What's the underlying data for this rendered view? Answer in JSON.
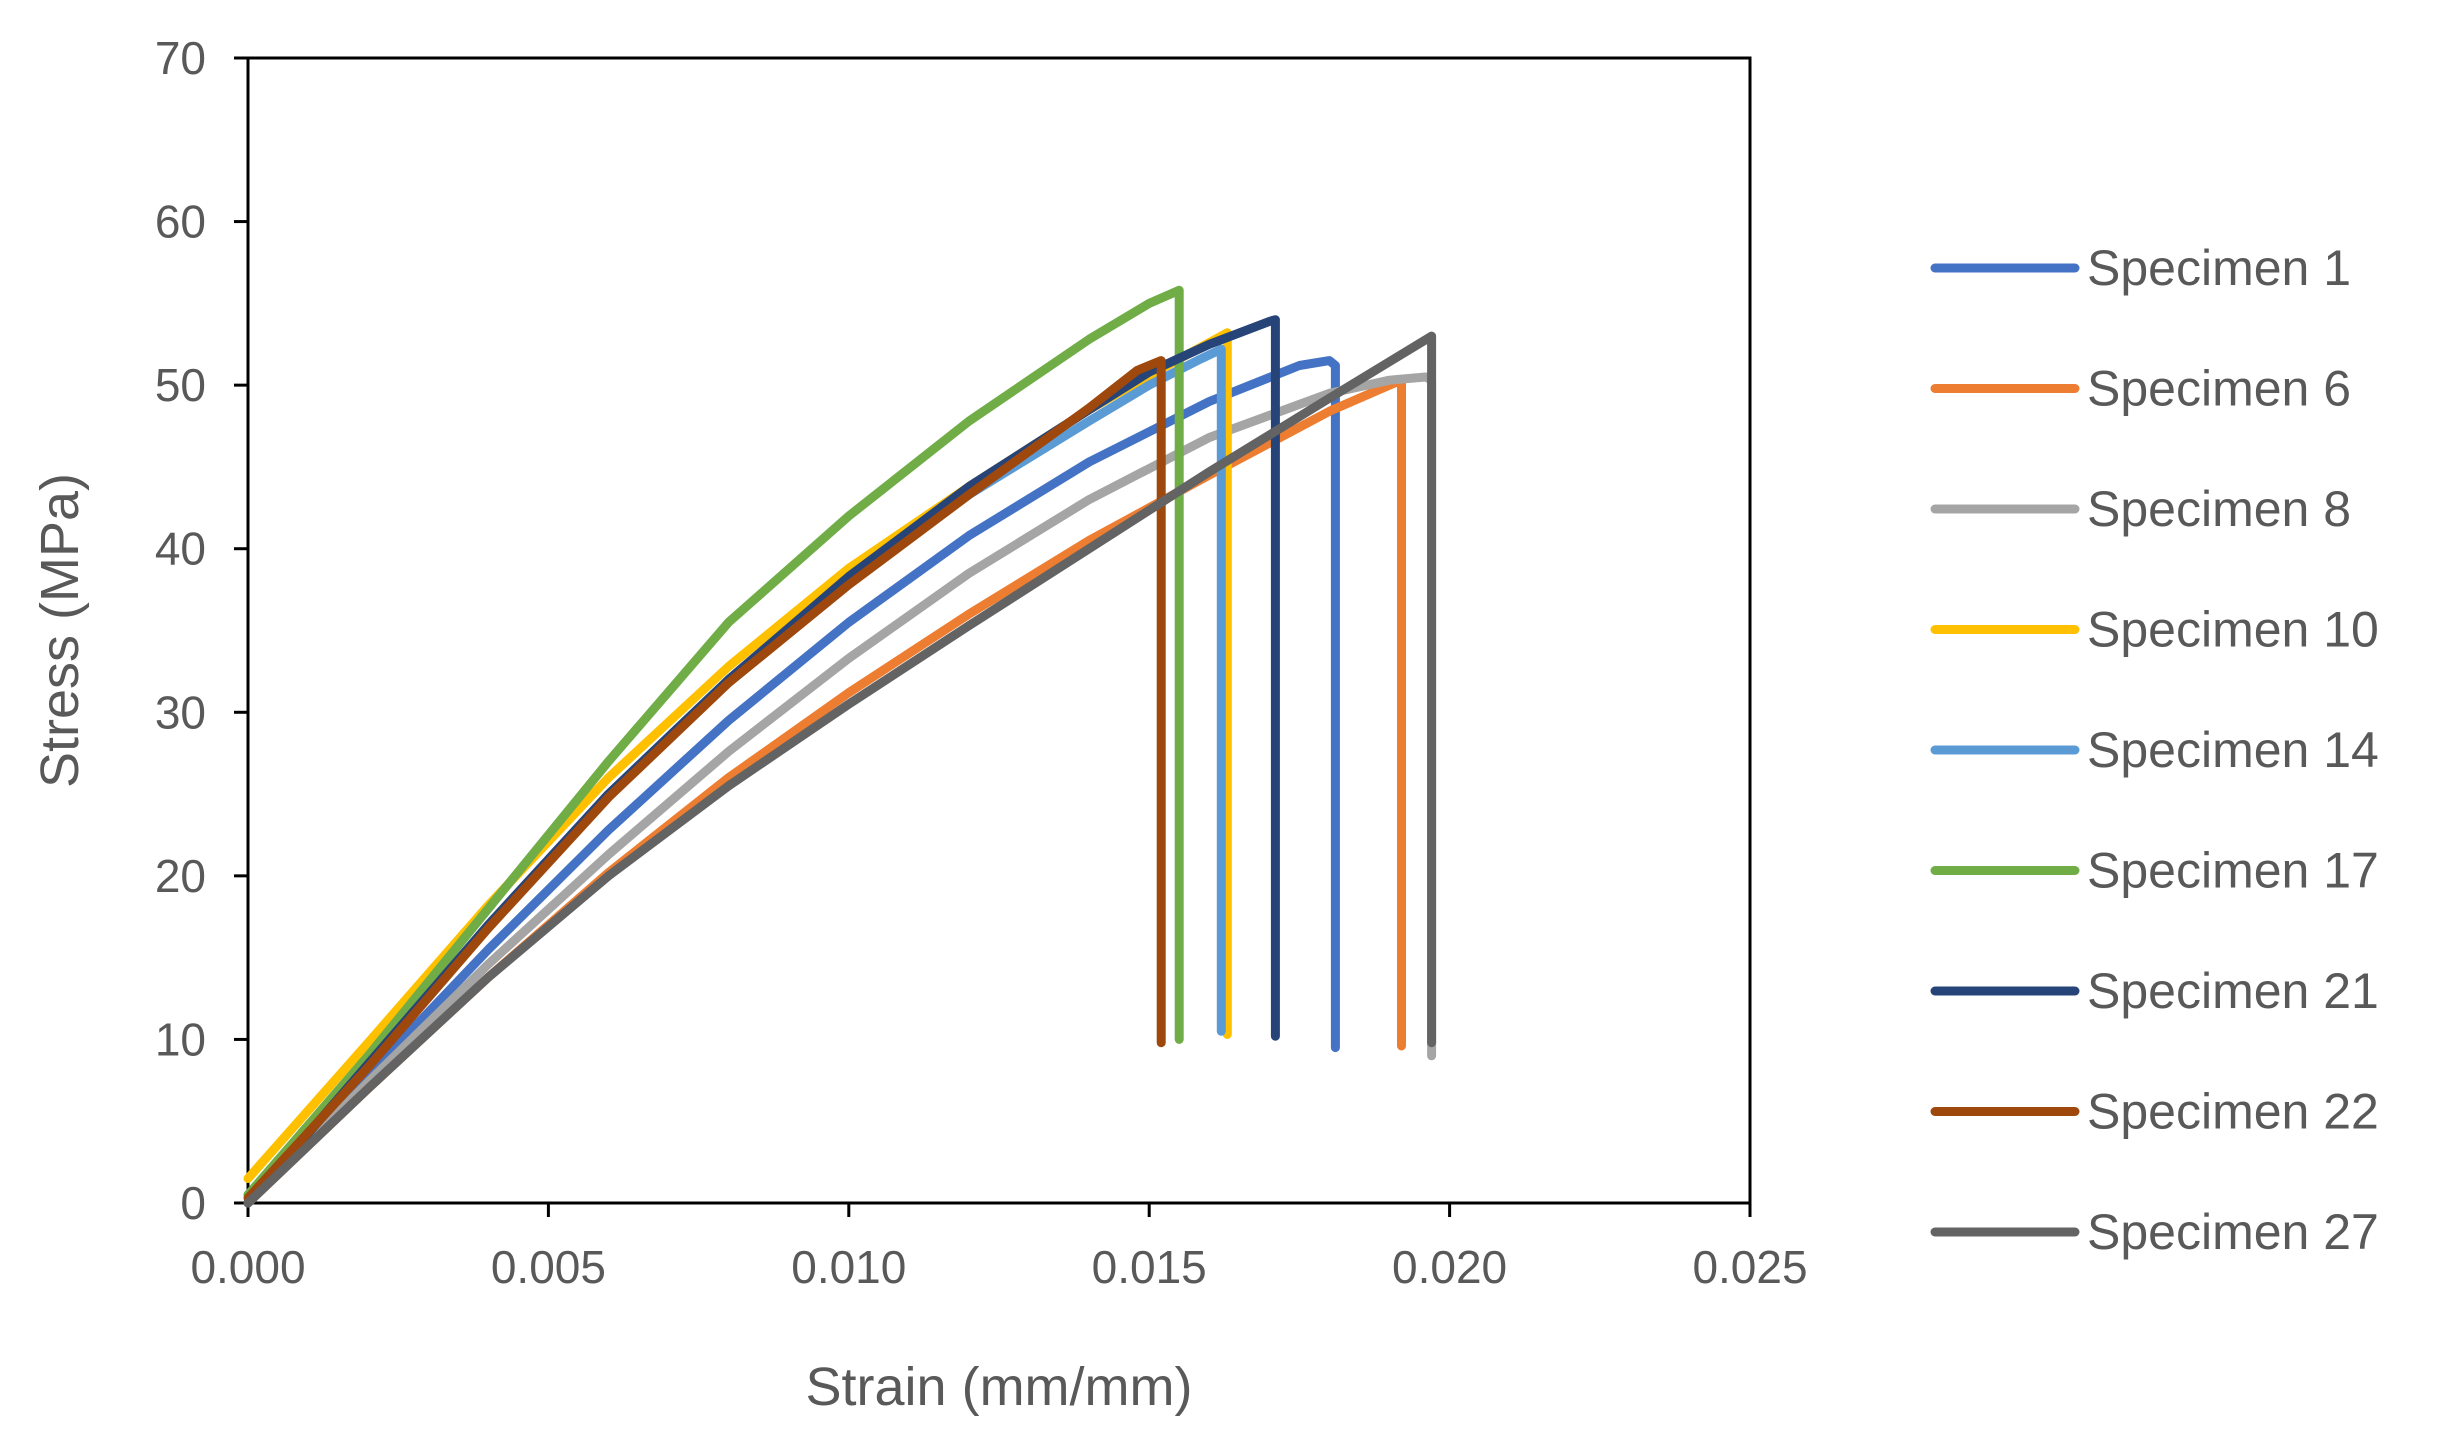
{
  "chart_data": {
    "type": "line",
    "title": "",
    "xlabel": "Strain (mm/mm)",
    "ylabel": "Stress (MPa)",
    "xlim": [
      0,
      0.025
    ],
    "ylim": [
      0,
      70
    ],
    "xticks": [
      0.0,
      0.005,
      0.01,
      0.015,
      0.02,
      0.025
    ],
    "xtick_labels": [
      "0.000",
      "0.005",
      "0.010",
      "0.015",
      "0.020",
      "0.025"
    ],
    "yticks": [
      0,
      10,
      20,
      30,
      40,
      50,
      60,
      70
    ],
    "ytick_labels": [
      "0",
      "10",
      "20",
      "30",
      "40",
      "50",
      "60",
      "70"
    ],
    "grid": false,
    "legend_position": "right",
    "series": [
      {
        "name": "Specimen 1",
        "color": "#4472C4",
        "x": [
          0.0,
          0.002,
          0.004,
          0.006,
          0.008,
          0.01,
          0.012,
          0.014,
          0.016,
          0.0175,
          0.018,
          0.0181,
          0.0181
        ],
        "y": [
          0,
          7.8,
          15.5,
          22.8,
          29.5,
          35.5,
          40.8,
          45.3,
          49.0,
          51.2,
          51.5,
          51.2,
          9.5
        ]
      },
      {
        "name": "Specimen 6",
        "color": "#ED7D31",
        "x": [
          0.0,
          0.002,
          0.004,
          0.006,
          0.008,
          0.01,
          0.012,
          0.014,
          0.016,
          0.018,
          0.019,
          0.0192,
          0.0192
        ],
        "y": [
          0,
          7.0,
          13.8,
          20.2,
          26.0,
          31.2,
          36.0,
          40.5,
          44.5,
          48.4,
          50.0,
          50.3,
          9.6
        ]
      },
      {
        "name": "Specimen 8",
        "color": "#A5A5A5",
        "x": [
          0.0,
          0.002,
          0.004,
          0.006,
          0.008,
          0.01,
          0.012,
          0.014,
          0.016,
          0.018,
          0.019,
          0.0196,
          0.0197,
          0.0197
        ],
        "y": [
          0,
          7.4,
          14.6,
          21.3,
          27.6,
          33.3,
          38.5,
          43.0,
          46.8,
          49.5,
          50.3,
          50.5,
          50.3,
          9.0
        ]
      },
      {
        "name": "Specimen 10",
        "color": "#FFC000",
        "x": [
          0.0,
          0.002,
          0.004,
          0.006,
          0.008,
          0.01,
          0.012,
          0.014,
          0.015,
          0.016,
          0.0163,
          0.0163
        ],
        "y": [
          1.5,
          9.8,
          18.2,
          26.0,
          32.8,
          38.8,
          43.8,
          48.5,
          50.6,
          52.6,
          53.2,
          10.3
        ]
      },
      {
        "name": "Specimen 14",
        "color": "#5B9BD5",
        "x": [
          0.0,
          0.002,
          0.004,
          0.006,
          0.008,
          0.01,
          0.012,
          0.014,
          0.015,
          0.0158,
          0.0162,
          0.0162
        ],
        "y": [
          0.5,
          8.5,
          17.0,
          25.0,
          32.0,
          38.0,
          43.3,
          47.8,
          50.0,
          51.5,
          52.2,
          10.5
        ]
      },
      {
        "name": "Specimen 17",
        "color": "#70AD47",
        "x": [
          0.0,
          0.002,
          0.004,
          0.006,
          0.008,
          0.01,
          0.012,
          0.014,
          0.015,
          0.0155,
          0.0155
        ],
        "y": [
          0.5,
          9.0,
          18.0,
          27.0,
          35.5,
          42.0,
          47.8,
          52.8,
          55.0,
          55.8,
          10.0
        ]
      },
      {
        "name": "Specimen 21",
        "color": "#264478",
        "x": [
          0.0,
          0.002,
          0.004,
          0.006,
          0.008,
          0.01,
          0.012,
          0.014,
          0.015,
          0.016,
          0.017,
          0.0171,
          0.0171
        ],
        "y": [
          0,
          8.5,
          17.0,
          25.0,
          32.0,
          38.3,
          43.8,
          48.5,
          50.8,
          52.5,
          53.9,
          54.0,
          10.2
        ]
      },
      {
        "name": "Specimen 22",
        "color": "#9E480E",
        "x": [
          0.0,
          0.002,
          0.004,
          0.006,
          0.008,
          0.01,
          0.012,
          0.014,
          0.0148,
          0.0152,
          0.0152
        ],
        "y": [
          0.3,
          8.3,
          16.8,
          24.8,
          31.8,
          37.8,
          43.3,
          48.6,
          50.9,
          51.5,
          9.8
        ]
      },
      {
        "name": "Specimen 27",
        "color": "#636363",
        "x": [
          0.0,
          0.002,
          0.004,
          0.006,
          0.008,
          0.01,
          0.012,
          0.014,
          0.016,
          0.018,
          0.0197,
          0.0197
        ],
        "y": [
          0,
          7.0,
          13.8,
          20.0,
          25.5,
          30.5,
          35.3,
          40.0,
          44.7,
          49.2,
          53.0,
          9.8
        ]
      }
    ]
  }
}
